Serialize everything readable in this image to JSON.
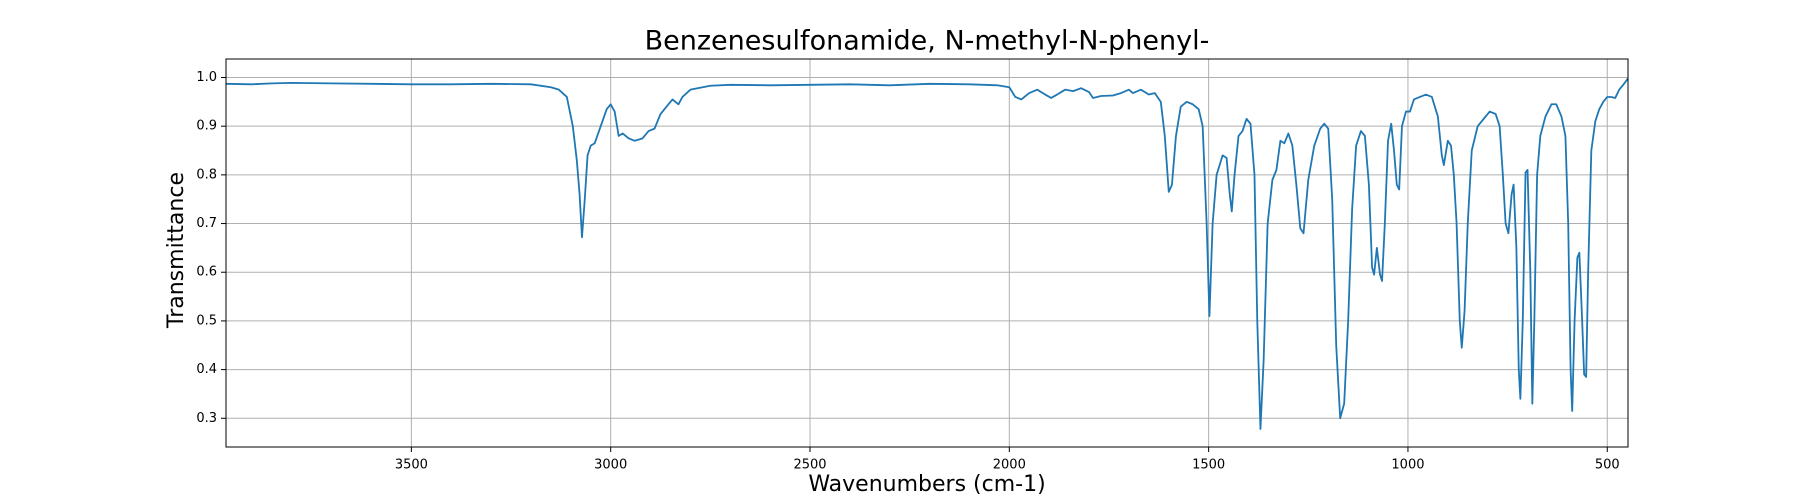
{
  "chart_data": {
    "type": "line",
    "title": "Benzenesulfonamide, N-methyl-N-phenyl-",
    "xlabel": "Wavenumbers (cm-1)",
    "ylabel": "Transmittance",
    "xlim": [
      3965,
      448
    ],
    "ylim": [
      0.241,
      1.038
    ],
    "xticks": [
      3500,
      3000,
      2500,
      2000,
      1500,
      1000,
      500
    ],
    "yticks": [
      0.3,
      0.4,
      0.5,
      0.6,
      0.7,
      0.8,
      0.9,
      {
        "value": 1.0,
        "label": "1.0"
      }
    ],
    "grid": true,
    "x": [
      3965,
      3900,
      3850,
      3800,
      3700,
      3600,
      3500,
      3400,
      3300,
      3200,
      3150,
      3130,
      3110,
      3095,
      3085,
      3078,
      3072,
      3065,
      3058,
      3050,
      3040,
      3025,
      3010,
      3000,
      2990,
      2980,
      2970,
      2955,
      2940,
      2920,
      2905,
      2890,
      2875,
      2860,
      2845,
      2830,
      2820,
      2800,
      2750,
      2700,
      2600,
      2500,
      2400,
      2300,
      2200,
      2100,
      2030,
      2000,
      1985,
      1970,
      1950,
      1930,
      1910,
      1895,
      1880,
      1860,
      1840,
      1820,
      1800,
      1790,
      1770,
      1740,
      1720,
      1700,
      1690,
      1670,
      1650,
      1635,
      1620,
      1610,
      1600,
      1592,
      1582,
      1570,
      1555,
      1540,
      1525,
      1515,
      1505,
      1498,
      1490,
      1480,
      1465,
      1455,
      1447,
      1442,
      1435,
      1425,
      1415,
      1405,
      1395,
      1385,
      1378,
      1370,
      1362,
      1352,
      1340,
      1330,
      1320,
      1310,
      1300,
      1290,
      1280,
      1270,
      1262,
      1250,
      1235,
      1220,
      1210,
      1200,
      1190,
      1180,
      1170,
      1160,
      1150,
      1140,
      1130,
      1118,
      1108,
      1098,
      1090,
      1085,
      1078,
      1070,
      1065,
      1058,
      1050,
      1042,
      1035,
      1028,
      1022,
      1015,
      1005,
      995,
      985,
      970,
      955,
      940,
      925,
      915,
      910,
      900,
      892,
      885,
      878,
      870,
      865,
      858,
      850,
      840,
      825,
      810,
      795,
      780,
      770,
      762,
      755,
      748,
      740,
      735,
      728,
      722,
      718,
      712,
      705,
      700,
      693,
      688,
      683,
      676,
      668,
      655,
      640,
      628,
      615,
      605,
      598,
      592,
      588,
      582,
      575,
      570,
      563,
      558,
      553,
      548,
      540,
      530,
      520,
      510,
      500,
      490,
      480,
      470,
      460,
      448
    ],
    "series": [
      {
        "name": "Transmittance",
        "color": "#1f77b4",
        "values": [
          0.987,
          0.986,
          0.988,
          0.989,
          0.988,
          0.987,
          0.986,
          0.986,
          0.987,
          0.986,
          0.98,
          0.975,
          0.96,
          0.9,
          0.83,
          0.76,
          0.672,
          0.75,
          0.84,
          0.86,
          0.865,
          0.9,
          0.935,
          0.945,
          0.93,
          0.88,
          0.885,
          0.875,
          0.87,
          0.875,
          0.89,
          0.895,
          0.925,
          0.94,
          0.955,
          0.945,
          0.96,
          0.975,
          0.983,
          0.985,
          0.984,
          0.985,
          0.986,
          0.984,
          0.987,
          0.986,
          0.984,
          0.98,
          0.96,
          0.955,
          0.968,
          0.975,
          0.965,
          0.958,
          0.965,
          0.975,
          0.972,
          0.978,
          0.97,
          0.958,
          0.962,
          0.963,
          0.968,
          0.975,
          0.968,
          0.975,
          0.965,
          0.968,
          0.95,
          0.88,
          0.765,
          0.78,
          0.88,
          0.94,
          0.95,
          0.945,
          0.935,
          0.9,
          0.7,
          0.51,
          0.7,
          0.8,
          0.84,
          0.835,
          0.76,
          0.725,
          0.8,
          0.88,
          0.89,
          0.915,
          0.905,
          0.8,
          0.5,
          0.278,
          0.42,
          0.7,
          0.79,
          0.81,
          0.87,
          0.865,
          0.885,
          0.86,
          0.78,
          0.69,
          0.68,
          0.79,
          0.86,
          0.895,
          0.905,
          0.895,
          0.75,
          0.45,
          0.3,
          0.33,
          0.5,
          0.73,
          0.86,
          0.89,
          0.88,
          0.78,
          0.61,
          0.595,
          0.65,
          0.595,
          0.582,
          0.7,
          0.87,
          0.905,
          0.85,
          0.78,
          0.77,
          0.9,
          0.93,
          0.93,
          0.955,
          0.96,
          0.965,
          0.96,
          0.92,
          0.84,
          0.82,
          0.87,
          0.86,
          0.8,
          0.7,
          0.5,
          0.445,
          0.52,
          0.7,
          0.85,
          0.9,
          0.915,
          0.93,
          0.925,
          0.9,
          0.8,
          0.7,
          0.68,
          0.76,
          0.78,
          0.65,
          0.4,
          0.34,
          0.5,
          0.805,
          0.81,
          0.6,
          0.33,
          0.5,
          0.8,
          0.88,
          0.92,
          0.945,
          0.945,
          0.92,
          0.88,
          0.7,
          0.4,
          0.315,
          0.5,
          0.63,
          0.64,
          0.5,
          0.39,
          0.385,
          0.6,
          0.85,
          0.91,
          0.935,
          0.95,
          0.96,
          0.96,
          0.958,
          0.975,
          0.985,
          0.998
        ]
      }
    ]
  }
}
